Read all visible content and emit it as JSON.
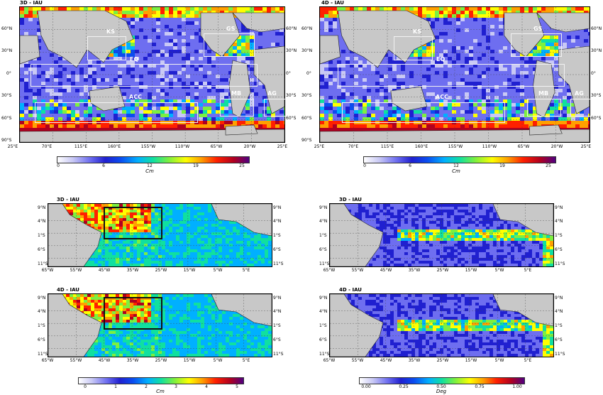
{
  "global_lat_ticks": [
    "60°N",
    "30°N",
    "0°",
    "30°S",
    "60°S",
    "90°S"
  ],
  "global_lon_ticks": [
    "25°E",
    "70°E",
    "115°E",
    "160°E",
    "155°W",
    "110°W",
    "65°W",
    "20°W",
    "25°E"
  ],
  "tropical_lat_ticks": [
    "9°N",
    "4°N",
    "1°S",
    "6°S",
    "11°S"
  ],
  "tropical_lon_ticks": [
    "65°W",
    "55°W",
    "45°W",
    "35°W",
    "25°W",
    "15°W",
    "5°W",
    "5°E"
  ],
  "regions": [
    "KS",
    "GS",
    "EQ",
    "ACC",
    "MB",
    "AG"
  ],
  "colorbar_cm25": {
    "ticks": [
      "0",
      "6",
      "12",
      "19",
      "25"
    ],
    "unit": "Cm"
  },
  "colorbar_cm5": {
    "ticks": [
      "0",
      "1",
      "2",
      "3",
      "4",
      "5"
    ],
    "unit": "Cm"
  },
  "colorbar_deg": {
    "ticks": [
      "0.00",
      "0.25",
      "0.50",
      "0.75",
      "1.00"
    ],
    "unit": "Deg"
  },
  "colormap": [
    "#ffffff",
    "#c9c9f5",
    "#6e6ef0",
    "#2020d0",
    "#0a4cf0",
    "#00b0ff",
    "#10e0a0",
    "#7cf040",
    "#ffff00",
    "#ffa000",
    "#ff2000",
    "#b00020",
    "#500080"
  ],
  "chart_data": [
    {
      "type": "heatmap",
      "title": "3D - IAU",
      "domain": "global",
      "unit": "Cm",
      "range": [
        0,
        25
      ],
      "boxes": [
        {
          "label": "KS",
          "lon": [
            120,
            165
          ],
          "lat": [
            25,
            45
          ]
        },
        {
          "label": "GS",
          "lon": [
            -80,
            -30
          ],
          "lat": [
            25,
            45
          ]
        },
        {
          "label": "EQ",
          "lon": [
            25,
            -10
          ],
          "lat": [
            -10,
            10
          ]
        },
        {
          "label": "ACC",
          "lon": [
            45,
            -140
          ],
          "lat": [
            -60,
            -40
          ]
        },
        {
          "label": "MB",
          "lon": [
            -70,
            -30
          ],
          "lat": [
            -55,
            -35
          ]
        },
        {
          "label": "AG",
          "lon": [
            5,
            30
          ],
          "lat": [
            -50,
            -35
          ]
        }
      ]
    },
    {
      "type": "heatmap",
      "title": "4D - IAU",
      "domain": "global",
      "unit": "Cm",
      "range": [
        0,
        25
      ],
      "boxes": [
        {
          "label": "KS",
          "lon": [
            120,
            165
          ],
          "lat": [
            25,
            45
          ]
        },
        {
          "label": "GS",
          "lon": [
            -80,
            -30
          ],
          "lat": [
            25,
            45
          ]
        },
        {
          "label": "EQ",
          "lon": [
            25,
            -10
          ],
          "lat": [
            -10,
            10
          ]
        },
        {
          "label": "ACC",
          "lon": [
            45,
            -140
          ],
          "lat": [
            -60,
            -40
          ]
        },
        {
          "label": "MB",
          "lon": [
            -70,
            -30
          ],
          "lat": [
            -55,
            -35
          ]
        },
        {
          "label": "AG",
          "lon": [
            5,
            30
          ],
          "lat": [
            -50,
            -35
          ]
        }
      ]
    },
    {
      "type": "heatmap",
      "title": "3D - IAU",
      "domain": "tropical Atlantic",
      "unit": "Cm",
      "range": [
        0,
        5
      ],
      "box": {
        "lon": [
          -45,
          -25
        ],
        "lat": [
          0,
          9
        ]
      }
    },
    {
      "type": "heatmap",
      "title": "3D - IAU",
      "domain": "tropical Atlantic",
      "unit": "Deg",
      "range": [
        0,
        1
      ]
    },
    {
      "type": "heatmap",
      "title": "4D - IAU",
      "domain": "tropical Atlantic",
      "unit": "Cm",
      "range": [
        0,
        5
      ],
      "box": {
        "lon": [
          -45,
          -25
        ],
        "lat": [
          0,
          9
        ]
      }
    },
    {
      "type": "heatmap",
      "title": "4D - IAU",
      "domain": "tropical Atlantic",
      "unit": "Deg",
      "range": [
        0,
        1
      ]
    }
  ]
}
